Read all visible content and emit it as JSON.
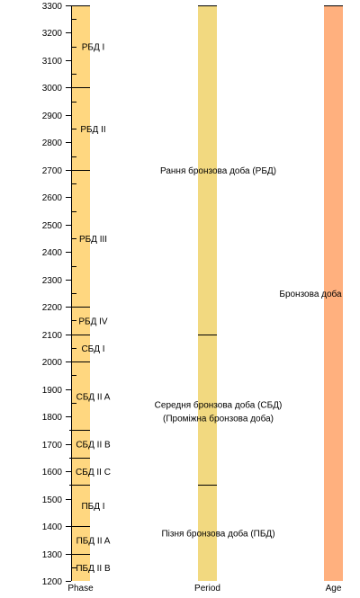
{
  "chart_data": {
    "type": "timeline",
    "y_range": [
      1200,
      3300
    ],
    "y_ticks": [
      1200,
      1300,
      1400,
      1500,
      1600,
      1700,
      1800,
      1900,
      2000,
      2100,
      2200,
      2300,
      2400,
      2500,
      2600,
      2700,
      2800,
      2900,
      3000,
      3100,
      3200,
      3300
    ],
    "columns": [
      {
        "label": "Phase",
        "color": "#FFD780",
        "segments": [
          {
            "label": "РБД I",
            "start": 3300,
            "end": 3000
          },
          {
            "label": "РБД II",
            "start": 3000,
            "end": 2700
          },
          {
            "label": "РБД III",
            "start": 2700,
            "end": 2200
          },
          {
            "label": "РБД IV",
            "start": 2200,
            "end": 2100
          },
          {
            "label": "СБД I",
            "start": 2100,
            "end": 2000
          },
          {
            "label": "СБД II A",
            "start": 2000,
            "end": 1750
          },
          {
            "label": "СБД II B",
            "start": 1750,
            "end": 1650
          },
          {
            "label": "СБД II C",
            "start": 1650,
            "end": 1550
          },
          {
            "label": "ПБД I",
            "start": 1550,
            "end": 1400
          },
          {
            "label": "ПБД II A",
            "start": 1400,
            "end": 1300
          },
          {
            "label": "ПБД II B",
            "start": 1300,
            "end": 1200
          }
        ]
      },
      {
        "label": "Period",
        "color": "#F2D980",
        "segments": [
          {
            "label": "Рання бронзова доба (РБД)",
            "start": 3300,
            "end": 2100
          },
          {
            "label": "Середня бронзова доба (СБД) (Проміжна бронзова доба)",
            "lines": [
              "Середня бронзова доба (СБД)",
              "(Проміжна бронзова доба)"
            ],
            "start": 2100,
            "end": 1550
          },
          {
            "label": "Пізня бронзова доба (ПБД)",
            "start": 1550,
            "end": 1200
          }
        ]
      },
      {
        "label": "Age",
        "color": "#FFB07E",
        "segments": [
          {
            "label": "Бронзова доба",
            "start": 3300,
            "end": 1200
          }
        ]
      }
    ],
    "minor_ticks_phase": [
      3250,
      3150,
      3050,
      2950,
      2850,
      2750,
      2650,
      2550,
      2450,
      2350,
      2250,
      2150,
      2050,
      1950,
      1850,
      1250
    ]
  }
}
